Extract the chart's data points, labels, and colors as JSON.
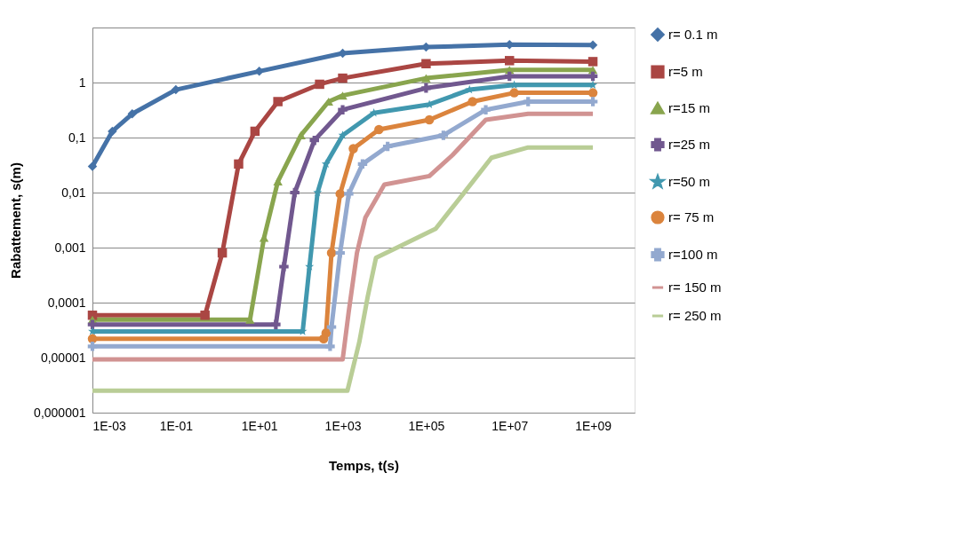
{
  "chart_data": {
    "type": "line",
    "xlabel": "Temps, t(s)",
    "ylabel": "Rabattement, s(m)",
    "log": "xy",
    "grid": "y",
    "legend": "right",
    "xlim": [
      0.001,
      10000000000
    ],
    "ylim": [
      1e-06,
      10
    ],
    "xticks": [
      {
        "value": 0.001,
        "label": "1E-03"
      },
      {
        "value": 0.1,
        "label": "1E-01"
      },
      {
        "value": 10,
        "label": "1E+01"
      },
      {
        "value": 1000,
        "label": "1E+03"
      },
      {
        "value": 100000,
        "label": "1E+05"
      },
      {
        "value": 10000000,
        "label": "1E+07"
      },
      {
        "value": 1000000000,
        "label": "1E+09"
      }
    ],
    "yticks": [
      {
        "value": 1e-06,
        "label": "0,000001"
      },
      {
        "value": 1e-05,
        "label": "0,00001"
      },
      {
        "value": 0.0001,
        "label": "0,0001"
      },
      {
        "value": 0.001,
        "label": "0,001"
      },
      {
        "value": 0.01,
        "label": "0,01"
      },
      {
        "value": 0.1,
        "label": "0,1"
      },
      1,
      {
        "value": 10,
        "label": null
      }
    ],
    "series": [
      {
        "name": "r= 0.1 m",
        "color": "#4572a7",
        "marker": "diamond",
        "x": [
          0.001,
          0.003,
          0.009,
          0.1,
          10,
          1000,
          100000,
          10000000,
          1000000000
        ],
        "values": [
          0.03,
          0.13,
          0.27,
          0.74,
          1.6,
          3.4,
          4.4,
          4.9,
          4.8
        ]
      },
      {
        "name": "r=5 m",
        "color": "#aa4643",
        "marker": "square",
        "x": [
          0.001,
          0.5,
          1.3,
          3.2,
          7.9,
          28,
          280,
          1000,
          100000,
          10000000,
          1000000000
        ],
        "values": [
          5.9e-05,
          5.9e-05,
          0.0008,
          0.033,
          0.13,
          0.45,
          0.93,
          1.2,
          2.2,
          2.5,
          2.4
        ]
      },
      {
        "name": "r=15 m",
        "color": "#89a54e",
        "marker": "triangle",
        "x": [
          0.001,
          6,
          13,
          28,
          100,
          460,
          1000,
          100000,
          10000000,
          1000000000
        ],
        "values": [
          4.9e-05,
          4.9e-05,
          0.0015,
          0.016,
          0.11,
          0.45,
          0.58,
          1.2,
          1.7,
          1.7
        ]
      },
      {
        "name": "r=25 m",
        "color": "#71588f",
        "marker": "cross",
        "x": [
          0.001,
          25,
          39,
          71,
          210,
          1000,
          100000,
          10000000,
          1000000000
        ],
        "values": [
          4e-05,
          4e-05,
          0.00045,
          0.01,
          0.089,
          0.32,
          0.79,
          1.3,
          1.3
        ]
      },
      {
        "name": "r=50 m",
        "color": "#4198af",
        "marker": "star",
        "x": [
          0.001,
          110,
          160,
          250,
          400,
          1000,
          5600,
          120000,
          1100000,
          13000000,
          1000000000
        ],
        "values": [
          3e-05,
          3e-05,
          0.00045,
          0.01,
          0.033,
          0.11,
          0.28,
          0.4,
          0.74,
          0.9,
          0.9
        ]
      },
      {
        "name": "r= 75 m",
        "color": "#db843d",
        "marker": "circle",
        "x": [
          0.001,
          350,
          400,
          540,
          870,
          1800,
          7400,
          120000,
          1300000,
          13000000,
          1000000000
        ],
        "values": [
          2.2e-05,
          2.2e-05,
          2.8e-05,
          0.0008,
          0.0095,
          0.063,
          0.14,
          0.21,
          0.45,
          0.65,
          0.65
        ]
      },
      {
        "name": "r=100 m",
        "color": "#93a9cf",
        "marker": "cross",
        "x": [
          0.001,
          500,
          540,
          870,
          1400,
          3000,
          12000,
          260000,
          2700000,
          28000000,
          1000000000
        ],
        "values": [
          1.6e-05,
          1.6e-05,
          3.6e-05,
          0.0008,
          0.0095,
          0.033,
          0.069,
          0.11,
          0.32,
          0.45,
          0.45
        ]
      },
      {
        "name": "r= 150 m",
        "color": "#d19392",
        "marker": "none",
        "x": [
          0.001,
          1000,
          1400,
          2200,
          3500,
          10000,
          120000,
          430000,
          2700000,
          28000000,
          1000000000
        ],
        "values": [
          9.3e-06,
          9.3e-06,
          6.9e-05,
          0.0008,
          0.0035,
          0.014,
          0.02,
          0.048,
          0.21,
          0.27,
          0.27
        ]
      },
      {
        "name": "r= 250 m",
        "color": "#b9cd96",
        "marker": "none",
        "x": [
          0.001,
          1300,
          2500,
          4000,
          6300,
          26000,
          170000,
          780000,
          3700000,
          28000000,
          1000000000
        ],
        "values": [
          2.5e-06,
          2.5e-06,
          1.9e-05,
          0.00013,
          0.00065,
          0.0011,
          0.0022,
          0.0095,
          0.043,
          0.066,
          0.066
        ]
      }
    ]
  }
}
